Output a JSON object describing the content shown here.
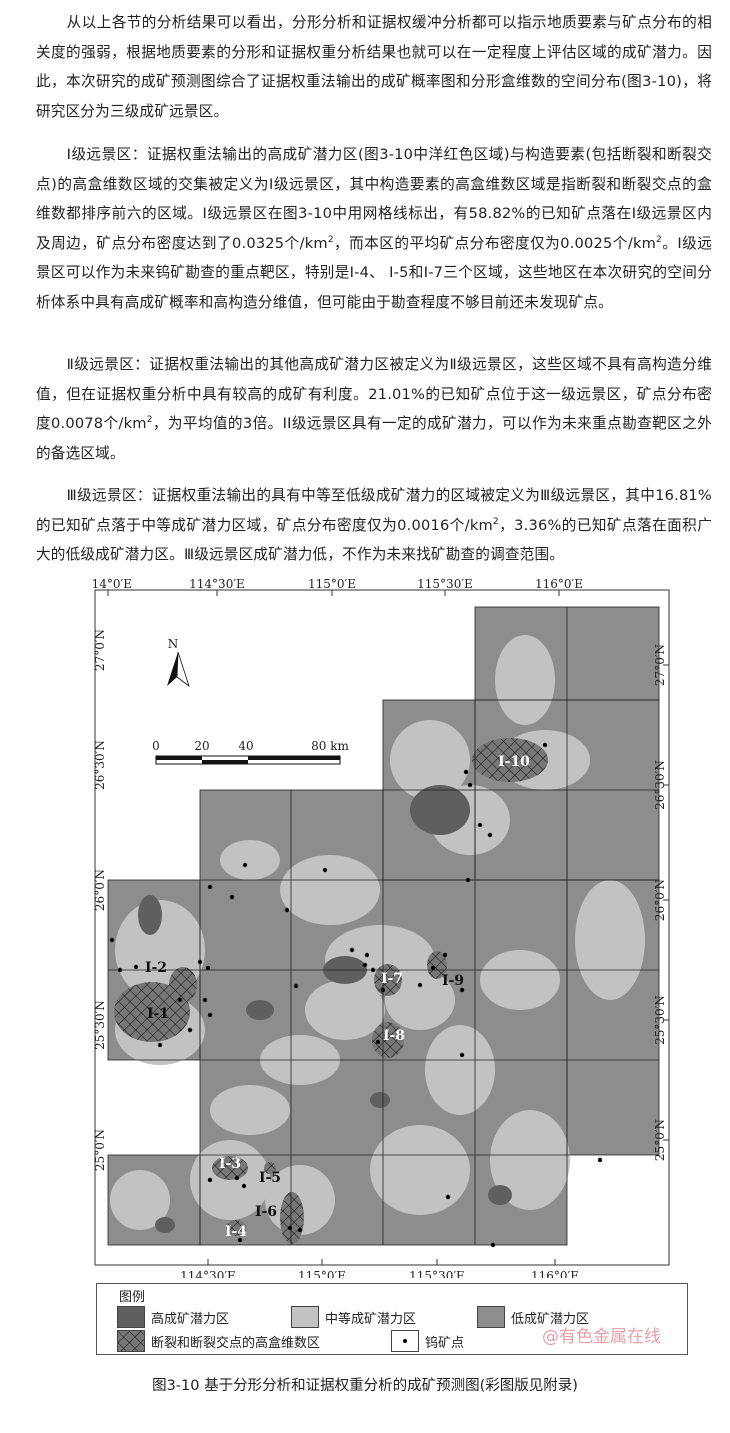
{
  "paragraphs": [
    "从以上各节的分析结果可以看出，分形分析和证据权缓冲分析都可以指示地质要素与矿点分布的相关度的强弱，根据地质要素的分形和证据权重分析结果也就可以在一定程度上评估区域的成矿潜力。因此，本次研究的成矿预测图综合了证据权重法输出的成矿概率图和分形盒维数的空间分布(图3-10)，将研究区分为三级成矿远景区。"
  ],
  "para2": {
    "a": "I级远景区：证据权重法输出的高成矿潜力区(图3-10中洋红色区域)与构造要素(包括断裂和断裂交点)的高盒维数区域的交集被定义为I级远景区，其中构造要素的高盒维数区域是指断裂和断裂交点的盒维数都排序前六的区域。I级远景区在图3-10中用网格线标出，有58.82%的已知矿点落在I级远景区内及周边，矿点分布密度达到了0.0325个/km",
    "b": "，而本区的平均矿点分布密度仅为0.0025个/km",
    "c": "。I级远景区可以作为未来钨矿勘查的重点靶区，特别是I-4、 I-5和I-7三个区域，这些地区在本次研究的空间分析体系中具有高成矿概率和高构造分维值，但可能由于勘查程度不够目前还未发现矿点。",
    "sup": "2"
  },
  "para3": {
    "a": "Ⅱ级远景区：证据权重法输出的其他高成矿潜力区被定义为Ⅱ级远景区，这些区域不具有高构造分维值，但在证据权重分析中具有较高的成矿有利度。21.01%的已知矿点位于这一级远景区，矿点分布密度0.0078个/km",
    "b": "，为平均值的3倍。II级远景区具有一定的成矿潜力，可以作为未来重点勘查靶区之外的备选区域。",
    "sup": "2"
  },
  "para4": {
    "a": "Ⅲ级远景区：证据权重法输出的具有中等至低级成矿潜力的区域被定义为Ⅲ级远景区，其中16.81%的已知矿点落于中等成矿潜力区域，矿点分布密度仅为0.0016个/km",
    "b": "，3.36%的已知矿点落在面积广大的低级成矿潜力区。Ⅲ级远景区成矿潜力低，不作为未来找矿勘查的调查范围。",
    "sup": "2"
  },
  "map": {
    "top_lon": [
      "114°0′E",
      "114°30′E",
      "115°0′E",
      "115°30′E",
      "116°0′E"
    ],
    "bottom_lon": [
      "114°30′E",
      "115°0′E",
      "115°30′E",
      "116°0′E"
    ],
    "left_lat": [
      "27°0′N",
      "26°30′N",
      "26°0′N",
      "25°30′N",
      "25°0′N"
    ],
    "right_lat": [
      "27°0′N",
      "26°30′N",
      "26°0′N",
      "25°30′N",
      "25°0′N"
    ],
    "north": "N",
    "scale": [
      "0",
      "20",
      "40",
      "80 km"
    ],
    "regions": [
      "I-1",
      "I-2",
      "I-3",
      "I-4",
      "I-5",
      "I-6",
      "I-7",
      "I-8",
      "I-9",
      "I-10"
    ],
    "colors": {
      "high": "#5f5f5f",
      "medium": "#c2c2c2",
      "low": "#8d8d8d"
    }
  },
  "legend": {
    "title": "图例",
    "high": "高成矿潜力区",
    "medium": "中等成矿潜力区",
    "low": "低成矿潜力区",
    "hatch": "断裂和断裂交点的高盒维数区",
    "point": "钨矿点"
  },
  "watermark": "@有色金属在线",
  "caption": "图3-10 基于分形分析和证据权重分析的成矿预测图(彩图版见附录)"
}
